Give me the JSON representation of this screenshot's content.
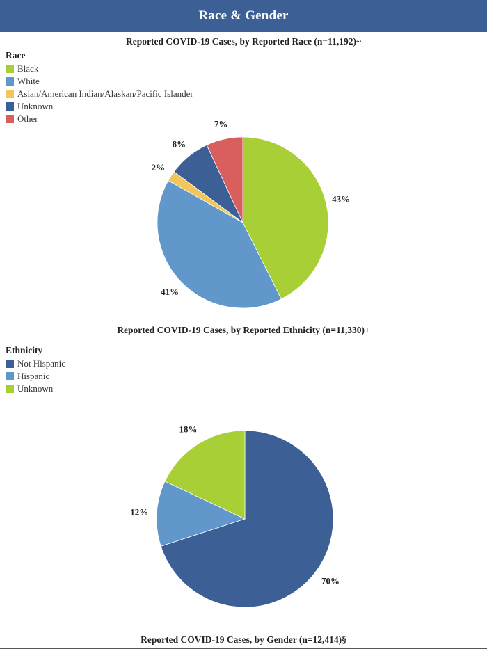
{
  "header": {
    "title": "Race & Gender"
  },
  "chart_data": [
    {
      "type": "pie",
      "title": "Reported COVID-19 Cases, by Reported Race (n=11,192)~",
      "legend_title": "Race",
      "legend_position": "top-left",
      "categories": [
        "Black",
        "White",
        "Asian/American Indian/Alaskan/Pacific Islander",
        "Unknown",
        "Other"
      ],
      "values": [
        43,
        41,
        2,
        8,
        7
      ],
      "labels": [
        "43%",
        "41%",
        "2%",
        "8%",
        "7%"
      ],
      "colors": [
        "#a8d036",
        "#6297cc",
        "#f1c75c",
        "#3c5f95",
        "#d95f5f"
      ]
    },
    {
      "type": "pie",
      "title": "Reported COVID-19 Cases, by Reported Ethnicity (n=11,330)+",
      "legend_title": "Ethnicity",
      "legend_position": "top-left",
      "categories": [
        "Not Hispanic",
        "Hispanic",
        "Unknown"
      ],
      "values": [
        70,
        12,
        18
      ],
      "labels": [
        "70%",
        "12%",
        "18%"
      ],
      "colors": [
        "#3c5f95",
        "#6297cc",
        "#a8d036"
      ]
    },
    {
      "type": "pie",
      "title": "Reported COVID-19 Cases, by Gender (n=12,414)§"
    }
  ]
}
